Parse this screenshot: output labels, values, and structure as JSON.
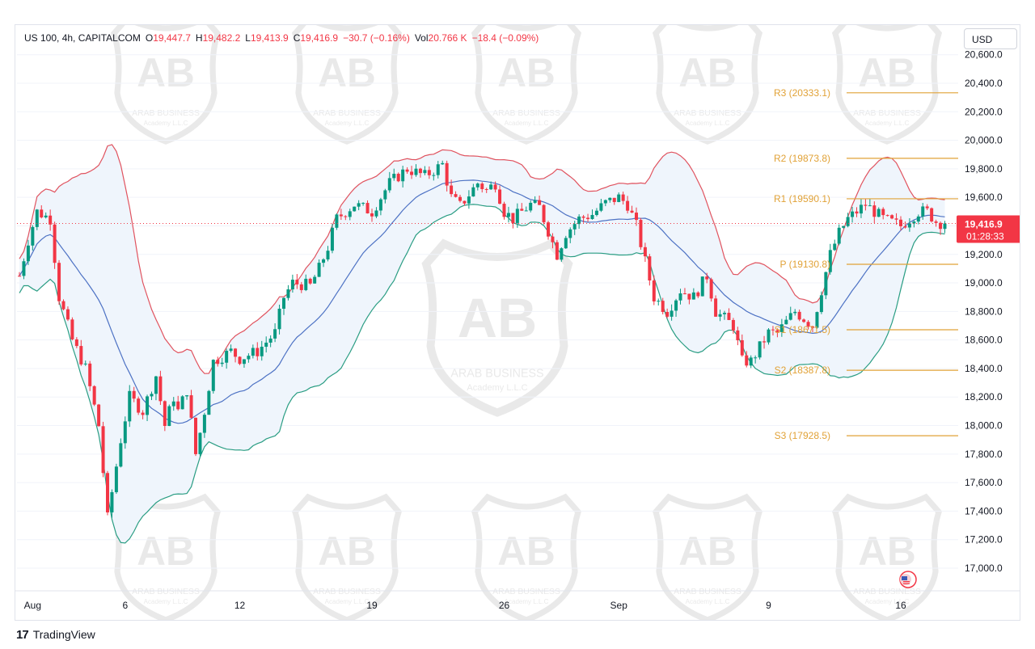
{
  "header": {
    "symbol": "US 100, 4h, CAPITALCOM",
    "open_label": "O",
    "open": "19,447.7",
    "high_label": "H",
    "high": "19,482.2",
    "low_label": "L",
    "low": "19,413.9",
    "close_label": "C",
    "close": "19,416.9",
    "change": "−30.7 (−0.16%)",
    "vol_label": "Vol",
    "vol": "20.766 K",
    "vol_change": "−18.4 (−0.09%)"
  },
  "currency_button": "USD",
  "price_tag": {
    "price": "19,416.9",
    "countdown": "01:28:33"
  },
  "footer": {
    "brand": "TradingView",
    "logo_glyph": "17"
  },
  "watermark": {
    "line1": "ARAB BUSINESS",
    "line2": "Academy L.L.C",
    "monogram": "AB"
  },
  "colors": {
    "up": "#089981",
    "down": "#f23645",
    "upper_band": "#e0535f",
    "lower_band": "#2a9d83",
    "basis": "#4d72c4",
    "band_fill": "#eef5fc",
    "levels": "#e1a237",
    "price_tag": "#f23645"
  },
  "chart_data": {
    "type": "candlestick",
    "timeframe": "4h",
    "ylim": [
      16850,
      20700
    ],
    "y_ticks": [
      17000,
      17200,
      17400,
      17600,
      17800,
      18000,
      18200,
      18400,
      18600,
      18800,
      19000,
      19200,
      19400,
      19600,
      19800,
      20000,
      20200,
      20400,
      20600
    ],
    "y_tick_labels": [
      "17,000.0",
      "17,200.0",
      "17,400.0",
      "17,600.0",
      "17,800.0",
      "18,000.0",
      "18,200.0",
      "18,400.0",
      "18,600.0",
      "18,800.0",
      "19,000.0",
      "19,200.0",
      "19,400.0",
      "19,600.0",
      "19,800.0",
      "20,000.0",
      "20,200.0",
      "20,400.0",
      "20,600.0"
    ],
    "x_tick_labels": [
      {
        "label": "Aug",
        "bar": 3
      },
      {
        "label": "6",
        "bar": 24
      },
      {
        "label": "12",
        "bar": 50
      },
      {
        "label": "19",
        "bar": 80
      },
      {
        "label": "26",
        "bar": 110
      },
      {
        "label": "Sep",
        "bar": 136
      },
      {
        "label": "9",
        "bar": 170
      },
      {
        "label": "16",
        "bar": 200
      }
    ],
    "anchors": [
      [
        0,
        19050
      ],
      [
        2,
        19300
      ],
      [
        4,
        19500
      ],
      [
        7,
        19450
      ],
      [
        9,
        18900
      ],
      [
        12,
        18600
      ],
      [
        15,
        18400
      ],
      [
        18,
        18000
      ],
      [
        20,
        17350
      ],
      [
        23,
        17900
      ],
      [
        25,
        18200
      ],
      [
        28,
        18100
      ],
      [
        31,
        18350
      ],
      [
        33,
        18000
      ],
      [
        35,
        18200
      ],
      [
        36,
        18100
      ],
      [
        38,
        18250
      ],
      [
        40,
        17800
      ],
      [
        42,
        18100
      ],
      [
        44,
        18450
      ],
      [
        48,
        18520
      ],
      [
        50,
        18470
      ],
      [
        54,
        18520
      ],
      [
        58,
        18650
      ],
      [
        60,
        18900
      ],
      [
        62,
        19000
      ],
      [
        66,
        18980
      ],
      [
        68,
        19100
      ],
      [
        70,
        19250
      ],
      [
        72,
        19450
      ],
      [
        76,
        19550
      ],
      [
        80,
        19500
      ],
      [
        84,
        19700
      ],
      [
        88,
        19800
      ],
      [
        92,
        19750
      ],
      [
        96,
        19830
      ],
      [
        98,
        19600
      ],
      [
        100,
        19540
      ],
      [
        104,
        19700
      ],
      [
        106,
        19650
      ],
      [
        108,
        19700
      ],
      [
        110,
        19500
      ],
      [
        112,
        19450
      ],
      [
        116,
        19550
      ],
      [
        118,
        19530
      ],
      [
        122,
        19200
      ],
      [
        124,
        19350
      ],
      [
        127,
        19450
      ],
      [
        130,
        19480
      ],
      [
        133,
        19560
      ],
      [
        136,
        19600
      ],
      [
        138,
        19550
      ],
      [
        140,
        19400
      ],
      [
        142,
        19150
      ],
      [
        144,
        18900
      ],
      [
        147,
        18800
      ],
      [
        150,
        18950
      ],
      [
        153,
        18900
      ],
      [
        156,
        19050
      ],
      [
        158,
        18800
      ],
      [
        162,
        18700
      ],
      [
        164,
        18450
      ],
      [
        166,
        18450
      ],
      [
        170,
        18650
      ],
      [
        172,
        18650
      ],
      [
        176,
        18800
      ],
      [
        180,
        18700
      ],
      [
        182,
        18950
      ],
      [
        184,
        19200
      ],
      [
        186,
        19350
      ],
      [
        188,
        19450
      ],
      [
        190,
        19500
      ],
      [
        192,
        19550
      ],
      [
        196,
        19450
      ],
      [
        200,
        19400
      ],
      [
        204,
        19500
      ],
      [
        206,
        19500
      ],
      [
        208,
        19430
      ],
      [
        210,
        19417
      ]
    ],
    "last_price": 19416.9,
    "levels": [
      {
        "label": "R3 (20333.1)",
        "value": 20333.1
      },
      {
        "label": "R2 (19873.8)",
        "value": 19873.8
      },
      {
        "label": "R1 (19590.1)",
        "value": 19590.1
      },
      {
        "label": "P (19130.8)",
        "value": 19130.8
      },
      {
        "label": "S1 (18671.5)",
        "value": 18671.5
      },
      {
        "label": "S2 (18387.8)",
        "value": 18387.8
      },
      {
        "label": "S3 (17928.5)",
        "value": 17928.5
      }
    ],
    "indicator": "Bollinger Bands (20, 2)"
  }
}
